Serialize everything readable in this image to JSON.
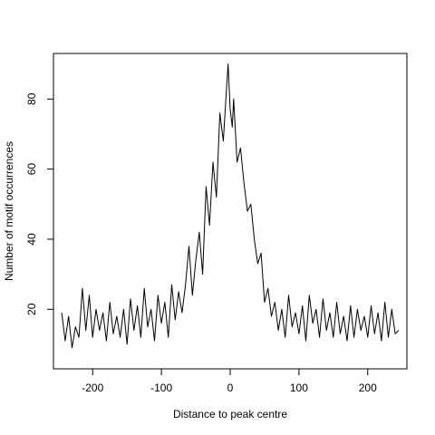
{
  "chart_data": {
    "type": "line",
    "title": "",
    "xlabel": "Distance to peak centre",
    "ylabel": "Number of motif occurrences",
    "xlim": [
      -257,
      257
    ],
    "ylim": [
      3,
      93
    ],
    "xticks": [
      -200,
      -100,
      0,
      100,
      200
    ],
    "xtick_labels": [
      "-200",
      "-100",
      "0",
      "100",
      "200"
    ],
    "yticks": [
      20,
      40,
      60,
      80
    ],
    "ytick_labels": [
      "20",
      "40",
      "60",
      "80"
    ],
    "grid": false,
    "legend": "none",
    "line_color": "#000000",
    "series": [
      {
        "x": [
          -245,
          -240,
          -235,
          -230,
          -225,
          -220,
          -215,
          -210,
          -205,
          -200,
          -195,
          -190,
          -185,
          -180,
          -175,
          -170,
          -165,
          -160,
          -155,
          -150,
          -145,
          -140,
          -135,
          -130,
          -125,
          -120,
          -115,
          -110,
          -105,
          -100,
          -95,
          -90,
          -85,
          -80,
          -75,
          -70,
          -65,
          -60,
          -55,
          -50,
          -45,
          -40,
          -35,
          -30,
          -25,
          -20,
          -15,
          -10,
          -5,
          -3,
          0,
          3,
          5,
          10,
          15,
          20,
          25,
          30,
          35,
          40,
          45,
          50,
          55,
          60,
          65,
          70,
          75,
          80,
          85,
          90,
          95,
          100,
          105,
          110,
          115,
          120,
          125,
          130,
          135,
          140,
          145,
          150,
          155,
          160,
          165,
          170,
          175,
          180,
          185,
          190,
          195,
          200,
          205,
          210,
          215,
          220,
          225,
          230,
          235,
          240,
          245
        ],
        "values": [
          19,
          11,
          18,
          9,
          15,
          12,
          26,
          14,
          24,
          12,
          20,
          14,
          19,
          11,
          22,
          13,
          18,
          12,
          20,
          10,
          23,
          14,
          21,
          12,
          26,
          15,
          20,
          11,
          24,
          16,
          22,
          12,
          27,
          17,
          25,
          19,
          27,
          38,
          24,
          34,
          42,
          30,
          55,
          44,
          62,
          52,
          76,
          68,
          84,
          90,
          77,
          72,
          80,
          62,
          66,
          56,
          48,
          50,
          40,
          33,
          36,
          22,
          26,
          18,
          22,
          14,
          20,
          12,
          24,
          15,
          19,
          13,
          21,
          11,
          24,
          16,
          20,
          12,
          23,
          14,
          19,
          12,
          22,
          13,
          18,
          11,
          21,
          12,
          20,
          14,
          18,
          12,
          21,
          13,
          19,
          11,
          22,
          12,
          20,
          13,
          14
        ]
      }
    ]
  }
}
